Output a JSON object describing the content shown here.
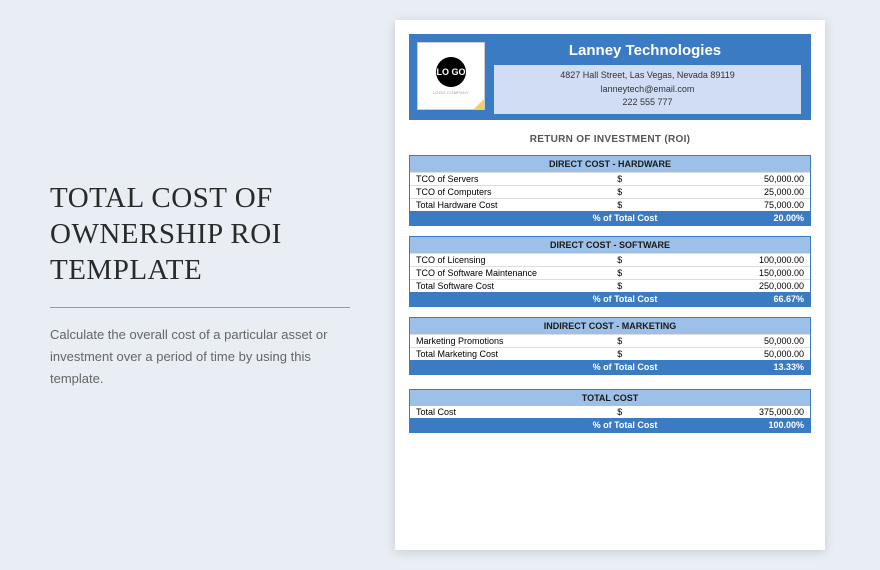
{
  "left": {
    "title": "TOTAL COST OF OWNERSHIP ROI TEMPLATE",
    "subtitle": "Calculate the overall cost of a particular asset or investment over a period of time by using this template."
  },
  "header": {
    "company": "Lanney Technologies",
    "address": "4827 Hall Street, Las Vegas, Nevada 89119",
    "email": "lanneytech@email.com",
    "phone": "222 555 777",
    "logo_text": "LO\nGO",
    "logo_sub": "LOGO COMPANY"
  },
  "roi_title": "RETURN OF INVESTMENT (ROI)",
  "pct_label": "% of Total Cost",
  "currency": "$",
  "sections": [
    {
      "title": "DIRECT COST - HARDWARE",
      "rows": [
        {
          "label": "TCO of Servers",
          "value": "50,000.00"
        },
        {
          "label": "TCO of Computers",
          "value": "25,000.00"
        },
        {
          "label": "Total Hardware Cost",
          "value": "75,000.00"
        }
      ],
      "pct": "20.00%"
    },
    {
      "title": "DIRECT COST - SOFTWARE",
      "rows": [
        {
          "label": "TCO of Licensing",
          "value": "100,000.00"
        },
        {
          "label": "TCO of Software Maintenance",
          "value": "150,000.00"
        },
        {
          "label": "Total Software Cost",
          "value": "250,000.00"
        }
      ],
      "pct": "66.67%"
    },
    {
      "title": "INDIRECT COST - MARKETING",
      "rows": [
        {
          "label": "Marketing Promotions",
          "value": "50,000.00"
        },
        {
          "label": "Total Marketing Cost",
          "value": "50,000.00"
        }
      ],
      "pct": "13.33%"
    }
  ],
  "total": {
    "title": "TOTAL COST",
    "rows": [
      {
        "label": "Total Cost",
        "value": "375,000.00"
      }
    ],
    "pct": "100.00%"
  },
  "colors": {
    "bg": "#e8eef4",
    "primary": "#3b7bc4",
    "light_blue": "#9cc0e8",
    "info_bar": "#d0ddf5"
  }
}
